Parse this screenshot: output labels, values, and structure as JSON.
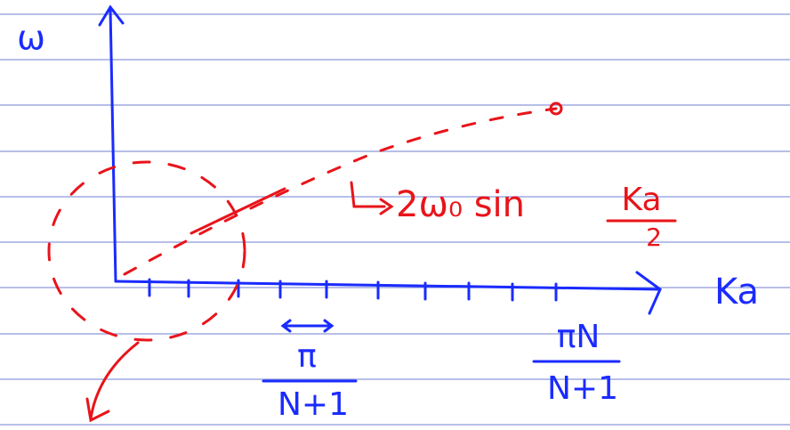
{
  "diagram": {
    "y_axis_label": "ω",
    "x_axis_label": "Ka",
    "formula": {
      "prefix": "2ω₀ sin",
      "numerator": "Ka",
      "denominator": "2"
    },
    "tick_spacing": {
      "numerator": "π",
      "denominator": "N+1"
    },
    "end_label": {
      "numerator": "πN",
      "denominator": "N+1"
    }
  }
}
